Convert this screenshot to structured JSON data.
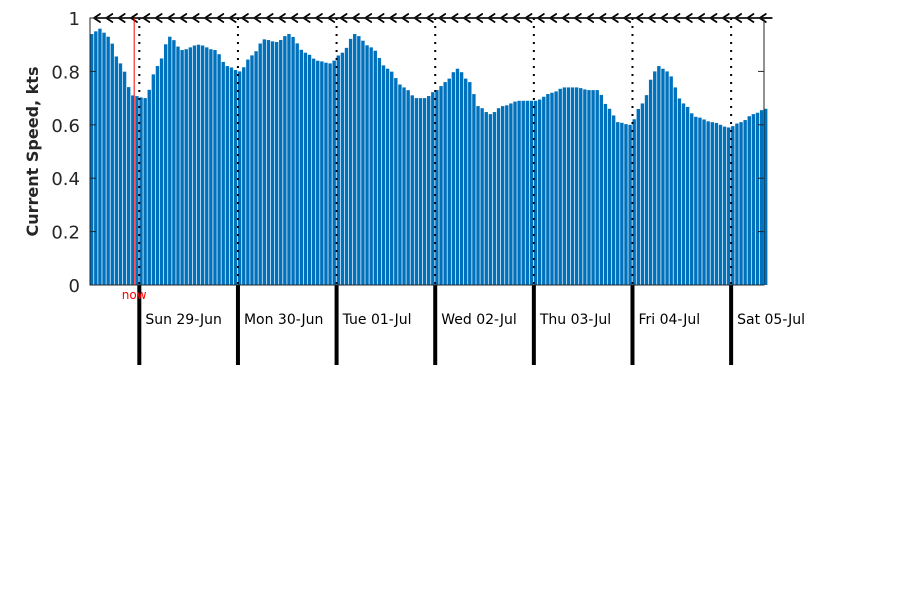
{
  "chart_data": {
    "type": "bar",
    "ylabel": "Current Speed, kts",
    "ylim": [
      0,
      1
    ],
    "yticks": [
      0,
      0.2,
      0.4,
      0.6,
      0.8,
      1
    ],
    "ytick_labels": [
      "0",
      "0.2",
      "0.4",
      "0.6",
      "0.8",
      "1"
    ],
    "bar_color": "#0072BD",
    "now_color": "#ff0000",
    "now_label": "now",
    "now_time": "28-Jun 22:45",
    "time_start": "28-Jun 12:00",
    "time_end": "05-Jul 08:00",
    "interval": "1 hour",
    "day_boundaries": [
      "29-Jun 00:00",
      "30-Jun 00:00",
      "01-Jul 00:00",
      "02-Jul 00:00",
      "03-Jul 00:00",
      "04-Jul 00:00",
      "05-Jul 00:00"
    ],
    "day_labels": [
      "Sun 29-Jun",
      "Mon 30-Jun",
      "Tue 01-Jul",
      "Wed 02-Jul",
      "Thu 03-Jul",
      "Fri 04-Jul",
      "Sat 05-Jul"
    ],
    "direction_arrows": "westward arrows along top axis, every 3 hours",
    "keypoints": [
      [
        "28-Jun 12:00",
        0.94
      ],
      [
        "28-Jun 14:00",
        0.96
      ],
      [
        "28-Jun 16:00",
        0.93
      ],
      [
        "28-Jun 19:00",
        0.83
      ],
      [
        "28-Jun 22:00",
        0.71
      ],
      [
        "29-Jun 01:00",
        0.7
      ],
      [
        "29-Jun 04:00",
        0.82
      ],
      [
        "29-Jun 07:00",
        0.93
      ],
      [
        "29-Jun 10:00",
        0.88
      ],
      [
        "29-Jun 14:00",
        0.9
      ],
      [
        "29-Jun 18:00",
        0.88
      ],
      [
        "29-Jun 21:00",
        0.82
      ],
      [
        "30-Jun 00:00",
        0.8
      ],
      [
        "30-Jun 03:00",
        0.86
      ],
      [
        "30-Jun 06:00",
        0.92
      ],
      [
        "30-Jun 09:00",
        0.91
      ],
      [
        "30-Jun 12:00",
        0.94
      ],
      [
        "30-Jun 16:00",
        0.87
      ],
      [
        "30-Jun 19:00",
        0.84
      ],
      [
        "30-Jun 22:00",
        0.83
      ],
      [
        "01-Jul 01:00",
        0.87
      ],
      [
        "01-Jul 04:00",
        0.94
      ],
      [
        "01-Jul 08:00",
        0.89
      ],
      [
        "01-Jul 12:00",
        0.81
      ],
      [
        "01-Jul 16:00",
        0.74
      ],
      [
        "01-Jul 19:00",
        0.7
      ],
      [
        "01-Jul 21:00",
        0.7
      ],
      [
        "02-Jul 00:00",
        0.73
      ],
      [
        "02-Jul 02:00",
        0.76
      ],
      [
        "02-Jul 05:00",
        0.81
      ],
      [
        "02-Jul 08:00",
        0.76
      ],
      [
        "02-Jul 10:00",
        0.67
      ],
      [
        "02-Jul 13:00",
        0.64
      ],
      [
        "02-Jul 16:00",
        0.67
      ],
      [
        "02-Jul 20:00",
        0.69
      ],
      [
        "03-Jul 00:00",
        0.69
      ],
      [
        "03-Jul 04:00",
        0.72
      ],
      [
        "03-Jul 07:00",
        0.74
      ],
      [
        "03-Jul 10:00",
        0.74
      ],
      [
        "03-Jul 13:00",
        0.73
      ],
      [
        "03-Jul 15:00",
        0.73
      ],
      [
        "03-Jul 18:00",
        0.66
      ],
      [
        "03-Jul 20:00",
        0.61
      ],
      [
        "03-Jul 23:00",
        0.6
      ],
      [
        "04-Jul 02:00",
        0.68
      ],
      [
        "04-Jul 05:00",
        0.8
      ],
      [
        "04-Jul 06:00",
        0.82
      ],
      [
        "04-Jul 08:00",
        0.8
      ],
      [
        "04-Jul 12:00",
        0.68
      ],
      [
        "04-Jul 15:00",
        0.63
      ],
      [
        "04-Jul 19:00",
        0.61
      ],
      [
        "04-Jul 23:00",
        0.59
      ],
      [
        "05-Jul 02:00",
        0.61
      ],
      [
        "05-Jul 05:00",
        0.64
      ],
      [
        "05-Jul 08:00",
        0.66
      ]
    ]
  }
}
